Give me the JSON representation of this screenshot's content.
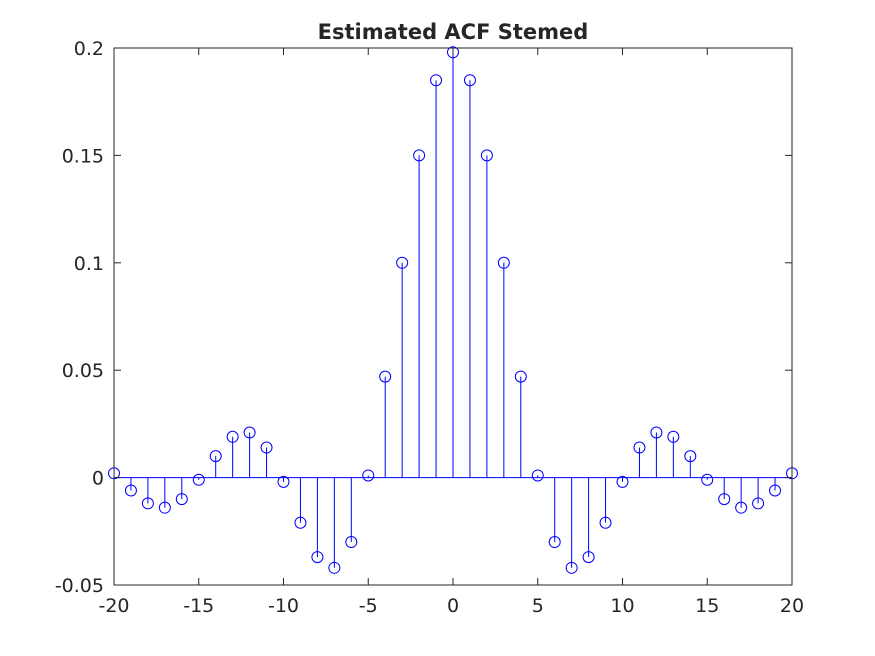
{
  "chart_data": {
    "type": "stem",
    "title": "Estimated ACF Stemed",
    "xlabel": "",
    "ylabel": "",
    "xlim": [
      -20,
      20
    ],
    "ylim": [
      -0.05,
      0.2
    ],
    "xticks": [
      -20,
      -15,
      -10,
      -5,
      0,
      5,
      10,
      15,
      20
    ],
    "yticks": [
      -0.05,
      0,
      0.05,
      0.1,
      0.15,
      0.2
    ],
    "xtick_labels": [
      "-20",
      "-15",
      "-10",
      "-5",
      "0",
      "5",
      "10",
      "15",
      "20"
    ],
    "ytick_labels": [
      "-0.05",
      "0",
      "0.05",
      "0.1",
      "0.15",
      "0.2"
    ],
    "grid": false,
    "marker": "circle-open",
    "series": [
      {
        "color": "#0000ff",
        "x": [
          -20,
          -19,
          -18,
          -17,
          -16,
          -15,
          -14,
          -13,
          -12,
          -11,
          -10,
          -9,
          -8,
          -7,
          -6,
          -5,
          -4,
          -3,
          -2,
          -1,
          0,
          1,
          2,
          3,
          4,
          5,
          6,
          7,
          8,
          9,
          10,
          11,
          12,
          13,
          14,
          15,
          16,
          17,
          18,
          19,
          20
        ],
        "y": [
          0.002,
          -0.006,
          -0.012,
          -0.014,
          -0.01,
          -0.001,
          0.01,
          0.019,
          0.021,
          0.014,
          -0.002,
          -0.021,
          -0.037,
          -0.042,
          -0.03,
          0.001,
          0.047,
          0.1,
          0.15,
          0.185,
          0.198,
          0.185,
          0.15,
          0.1,
          0.047,
          0.001,
          -0.03,
          -0.042,
          -0.037,
          -0.021,
          -0.002,
          0.014,
          0.021,
          0.019,
          0.01,
          -0.001,
          -0.01,
          -0.014,
          -0.012,
          -0.006,
          0.002
        ]
      }
    ]
  }
}
